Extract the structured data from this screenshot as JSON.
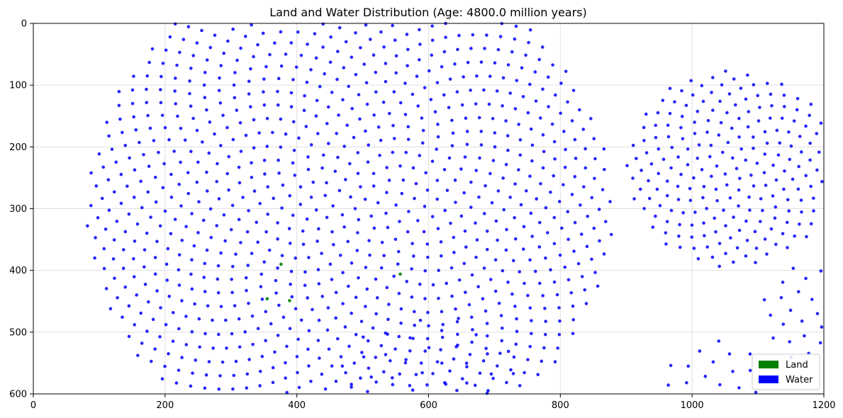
{
  "chart_data": {
    "type": "scatter",
    "title": "Land and Water Distribution (Age: 4800.0 million years)",
    "xlim": [
      0,
      1200
    ],
    "ylim": [
      600,
      0
    ],
    "y_inverted": true,
    "grid": true,
    "legend_position": "lower-right",
    "x_ticks": [
      "0",
      "200",
      "400",
      "600",
      "800",
      "1000",
      "1200"
    ],
    "y_ticks": [
      "0",
      "100",
      "200",
      "300",
      "400",
      "500",
      "600"
    ],
    "series": [
      {
        "name": "Land",
        "color": "#008000",
        "points": [
          [
            376,
            390
          ],
          [
            389,
            449
          ],
          [
            557,
            406
          ],
          [
            355,
            446
          ]
        ]
      },
      {
        "name": "Water",
        "color": "#0000ff",
        "regions": [
          {
            "kind": "sunflower",
            "center": [
              480,
              300
            ],
            "radius": 400,
            "count": 1100
          },
          {
            "kind": "sunflower",
            "center": [
              1060,
              235
            ],
            "radius": 160,
            "count": 220
          },
          {
            "kind": "sunflower",
            "center": [
              1180,
              470
            ],
            "radius": 80,
            "count": 30
          },
          {
            "kind": "sunflower",
            "center": [
              1040,
              610
            ],
            "radius": 100,
            "count": 40
          },
          {
            "kind": "sunflower",
            "center": [
              600,
              640
            ],
            "radius": 170,
            "count": 80
          }
        ],
        "note_points_are_estimated": true
      }
    ],
    "legend": [
      {
        "label": "Land",
        "color": "#008000"
      },
      {
        "label": "Water",
        "color": "#0000ff"
      }
    ]
  }
}
